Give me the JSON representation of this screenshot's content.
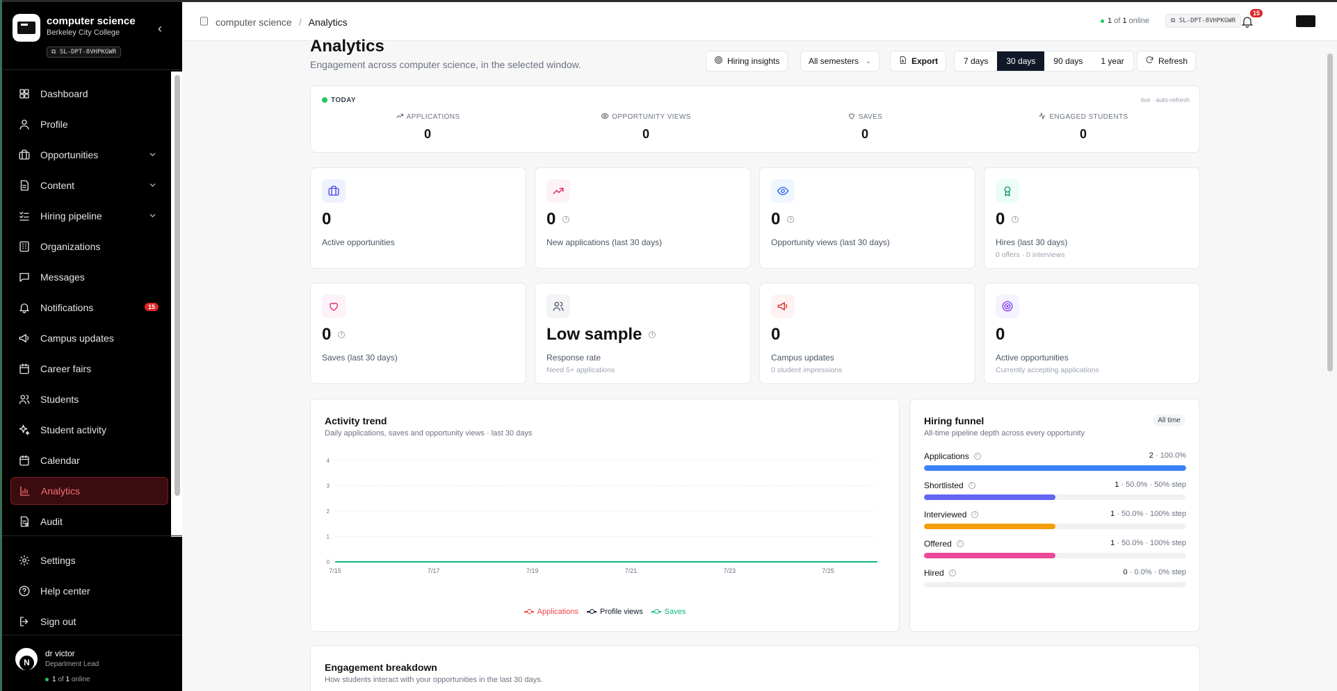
{
  "sidebar": {
    "org_name": "computer science",
    "org_sub": "Berkeley City College",
    "code": "SL-DPT-8VHPKGWR",
    "items": [
      {
        "label": "Dashboard",
        "icon": "dashboard-icon"
      },
      {
        "label": "Profile",
        "icon": "user-icon"
      },
      {
        "label": "Opportunities",
        "icon": "briefcase-icon",
        "chevron": true
      },
      {
        "label": "Content",
        "icon": "file-icon",
        "chevron": true
      },
      {
        "label": "Hiring pipeline",
        "icon": "list-check-icon",
        "chevron": true
      },
      {
        "label": "Organizations",
        "icon": "building-icon"
      },
      {
        "label": "Messages",
        "icon": "message-icon"
      },
      {
        "label": "Notifications",
        "icon": "bell-icon",
        "badge": "15"
      },
      {
        "label": "Campus updates",
        "icon": "megaphone-icon"
      },
      {
        "label": "Career fairs",
        "icon": "calendar-icon"
      },
      {
        "label": "Students",
        "icon": "users-icon"
      },
      {
        "label": "Student activity",
        "icon": "sparkles-icon"
      },
      {
        "label": "Calendar",
        "icon": "calendar-icon"
      },
      {
        "label": "Analytics",
        "icon": "bar-chart-icon",
        "active": true
      },
      {
        "label": "Audit",
        "icon": "audit-icon"
      }
    ],
    "footer_items": [
      {
        "label": "Settings",
        "icon": "gear-icon"
      },
      {
        "label": "Help center",
        "icon": "help-icon"
      },
      {
        "label": "Sign out",
        "icon": "sign-out-icon"
      }
    ],
    "user": {
      "initial": "N",
      "name": "dr victor",
      "role": "Department Lead",
      "online_count": "1",
      "online_total": "1",
      "online_of": "of",
      "online_suffix": "online"
    }
  },
  "topbar": {
    "crumb_org": "computer science",
    "crumb_sep": "/",
    "crumb_page": "Analytics",
    "online_count": "1",
    "online_of": "of",
    "online_total": "1",
    "online_suffix": "online",
    "code": "SL-DPT-8VHPKGWR",
    "notif_count": "15"
  },
  "header": {
    "title": "Analytics",
    "subtitle": "Engagement across computer science, in the selected window.",
    "hiring_insights": "Hiring insights",
    "semester_select": "All semesters",
    "export": "Export",
    "ranges": [
      "7 days",
      "30 days",
      "90 days",
      "1 year"
    ],
    "selected_range": "30 days",
    "refresh": "Refresh"
  },
  "today": {
    "tag": "TODAY",
    "live": "live · auto-refresh",
    "stats": [
      {
        "label": "APPLICATIONS",
        "value": "0",
        "icon": "trending-up-icon"
      },
      {
        "label": "OPPORTUNITY VIEWS",
        "value": "0",
        "icon": "eye-icon"
      },
      {
        "label": "SAVES",
        "value": "0",
        "icon": "heart-icon"
      },
      {
        "label": "ENGAGED STUDENTS",
        "value": "0",
        "icon": "activity-icon"
      }
    ]
  },
  "kpis": [
    {
      "value": "0",
      "label": "Active opportunities",
      "sub": "",
      "icon": "briefcase-icon",
      "info": false
    },
    {
      "value": "0",
      "label": "New applications (last 30 days)",
      "sub": "",
      "icon": "trending-up-icon",
      "info": true
    },
    {
      "value": "0",
      "label": "Opportunity views (last 30 days)",
      "sub": "",
      "icon": "eye-icon",
      "info": true
    },
    {
      "value": "0",
      "label": "Hires (last 30 days)",
      "sub": "0 offers · 0 interviews",
      "icon": "award-icon",
      "info": true
    },
    {
      "value": "0",
      "label": "Saves (last 30 days)",
      "sub": "",
      "icon": "heart-icon",
      "info": true
    },
    {
      "value": "Low sample",
      "label": "Response rate",
      "sub": "Need 5+ applications",
      "icon": "users-icon",
      "info": true
    },
    {
      "value": "0",
      "label": "Campus updates",
      "sub": "0 student impressions",
      "icon": "megaphone-icon",
      "info": false
    },
    {
      "value": "0",
      "label": "Active opportunities",
      "sub": "Currently accepting applications",
      "icon": "target-icon",
      "info": false
    }
  ],
  "colors": {
    "accent_red": "#dc2626",
    "applications": "#ef4444",
    "profile_views": "#111827",
    "saves": "#10b981",
    "funnel_applications": "#3b82f6",
    "funnel_shortlisted": "#6366f1",
    "funnel_interviewed": "#f59e0b",
    "funnel_offered": "#ec4899"
  },
  "trend": {
    "title": "Activity trend",
    "subtitle": "Daily applications, saves and opportunity views · last 30 days"
  },
  "chart_data": {
    "type": "line",
    "title": "Activity trend",
    "x": [
      "7/15",
      "7/16",
      "7/17",
      "7/18",
      "7/19",
      "7/20",
      "7/21",
      "7/22",
      "7/23",
      "7/24",
      "7/25",
      "7/26"
    ],
    "x_ticks": [
      "7/15",
      "7/17",
      "7/19",
      "7/21",
      "7/23",
      "7/25"
    ],
    "y_ticks": [
      "4",
      "3",
      "2",
      "1",
      "0"
    ],
    "ylim": [
      0,
      4
    ],
    "grid": true,
    "legend": "bottom",
    "series": [
      {
        "name": "Applications",
        "color": "#ef4444",
        "values": [
          0,
          0,
          0,
          0,
          0,
          0,
          0,
          0,
          0,
          0,
          0,
          0
        ]
      },
      {
        "name": "Profile views",
        "color": "#111827",
        "values": [
          0,
          0,
          0,
          0,
          0,
          0,
          0,
          0,
          0,
          0,
          0,
          0
        ]
      },
      {
        "name": "Saves",
        "color": "#10b981",
        "values": [
          0,
          0,
          0,
          0,
          0,
          0,
          0,
          0,
          0,
          0,
          0,
          0
        ]
      }
    ]
  },
  "funnel": {
    "title": "Hiring funnel",
    "subtitle": "All-time pipeline depth across every opportunity",
    "badge": "All time",
    "rows": [
      {
        "label": "Applications",
        "count": "2",
        "detail": " · 100.0%",
        "fraction": 1.0
      },
      {
        "label": "Shortlisted",
        "count": "1",
        "detail": " · 50.0% · 50% step",
        "fraction": 0.5
      },
      {
        "label": "Interviewed",
        "count": "1",
        "detail": " · 50.0% · 100% step",
        "fraction": 0.5
      },
      {
        "label": "Offered",
        "count": "1",
        "detail": " · 50.0% · 100% step",
        "fraction": 0.5
      },
      {
        "label": "Hired",
        "count": "0",
        "detail": " · 0.0% · 0% step",
        "fraction": 0.0
      }
    ]
  },
  "engagement": {
    "title": "Engagement breakdown",
    "subtitle": "How students interact with your opportunities in the last 30 days."
  }
}
